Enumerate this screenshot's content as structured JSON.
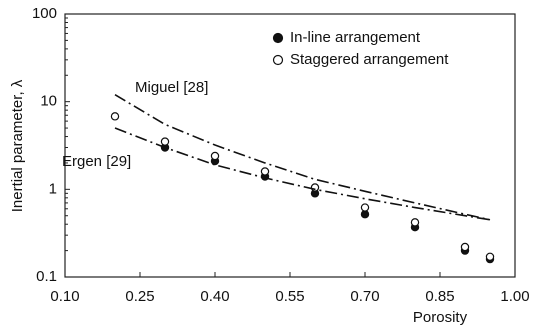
{
  "chart_data": {
    "type": "scatter",
    "x_label": "Porosity",
    "y_label": "Inertial parameter, λ",
    "xlim": [
      0.1,
      1.0
    ],
    "xticks": [
      {
        "value": 0.1,
        "label": "0.10"
      },
      0.25,
      {
        "value": 0.4,
        "label": "0.40"
      },
      0.55,
      {
        "value": 0.7,
        "label": "0.70"
      },
      0.85,
      {
        "value": 1.0,
        "label": "1.00"
      }
    ],
    "ylim": [
      0.1,
      100
    ],
    "yticks": [
      0.1,
      1,
      10,
      100
    ],
    "log_y": true,
    "grid": false,
    "legend": "upper right",
    "series": [
      {
        "name": "In-line arrangement",
        "type": "scatter",
        "marker": "filled",
        "color": "#111111",
        "x": [
          0.3,
          0.4,
          0.5,
          0.6,
          0.7,
          0.8,
          0.9,
          0.95
        ],
        "values": [
          3.0,
          2.1,
          1.4,
          0.9,
          0.52,
          0.37,
          0.2,
          0.16
        ]
      },
      {
        "name": "Staggered arrangement",
        "type": "scatter",
        "marker": "open",
        "color": "#111111",
        "x": [
          0.2,
          0.3,
          0.4,
          0.5,
          0.6,
          0.7,
          0.8,
          0.9,
          0.95
        ],
        "values": [
          6.8,
          3.5,
          2.4,
          1.6,
          1.05,
          0.62,
          0.42,
          0.22,
          0.17
        ]
      },
      {
        "name": "Miguel [28]",
        "type": "line",
        "style": "dash-dot",
        "color": "#111111",
        "x": [
          0.2,
          0.3,
          0.4,
          0.5,
          0.6,
          0.7,
          0.8,
          0.9,
          0.95
        ],
        "values": [
          12,
          5.5,
          3.2,
          2.0,
          1.3,
          0.95,
          0.7,
          0.52,
          0.45
        ]
      },
      {
        "name": "Ergen [29]",
        "type": "line",
        "style": "dash-dot",
        "color": "#111111",
        "x": [
          0.2,
          0.3,
          0.4,
          0.5,
          0.6,
          0.7,
          0.8,
          0.9,
          0.95
        ],
        "values": [
          5,
          3.0,
          1.9,
          1.35,
          1.0,
          0.78,
          0.62,
          0.5,
          0.45
        ]
      }
    ]
  }
}
